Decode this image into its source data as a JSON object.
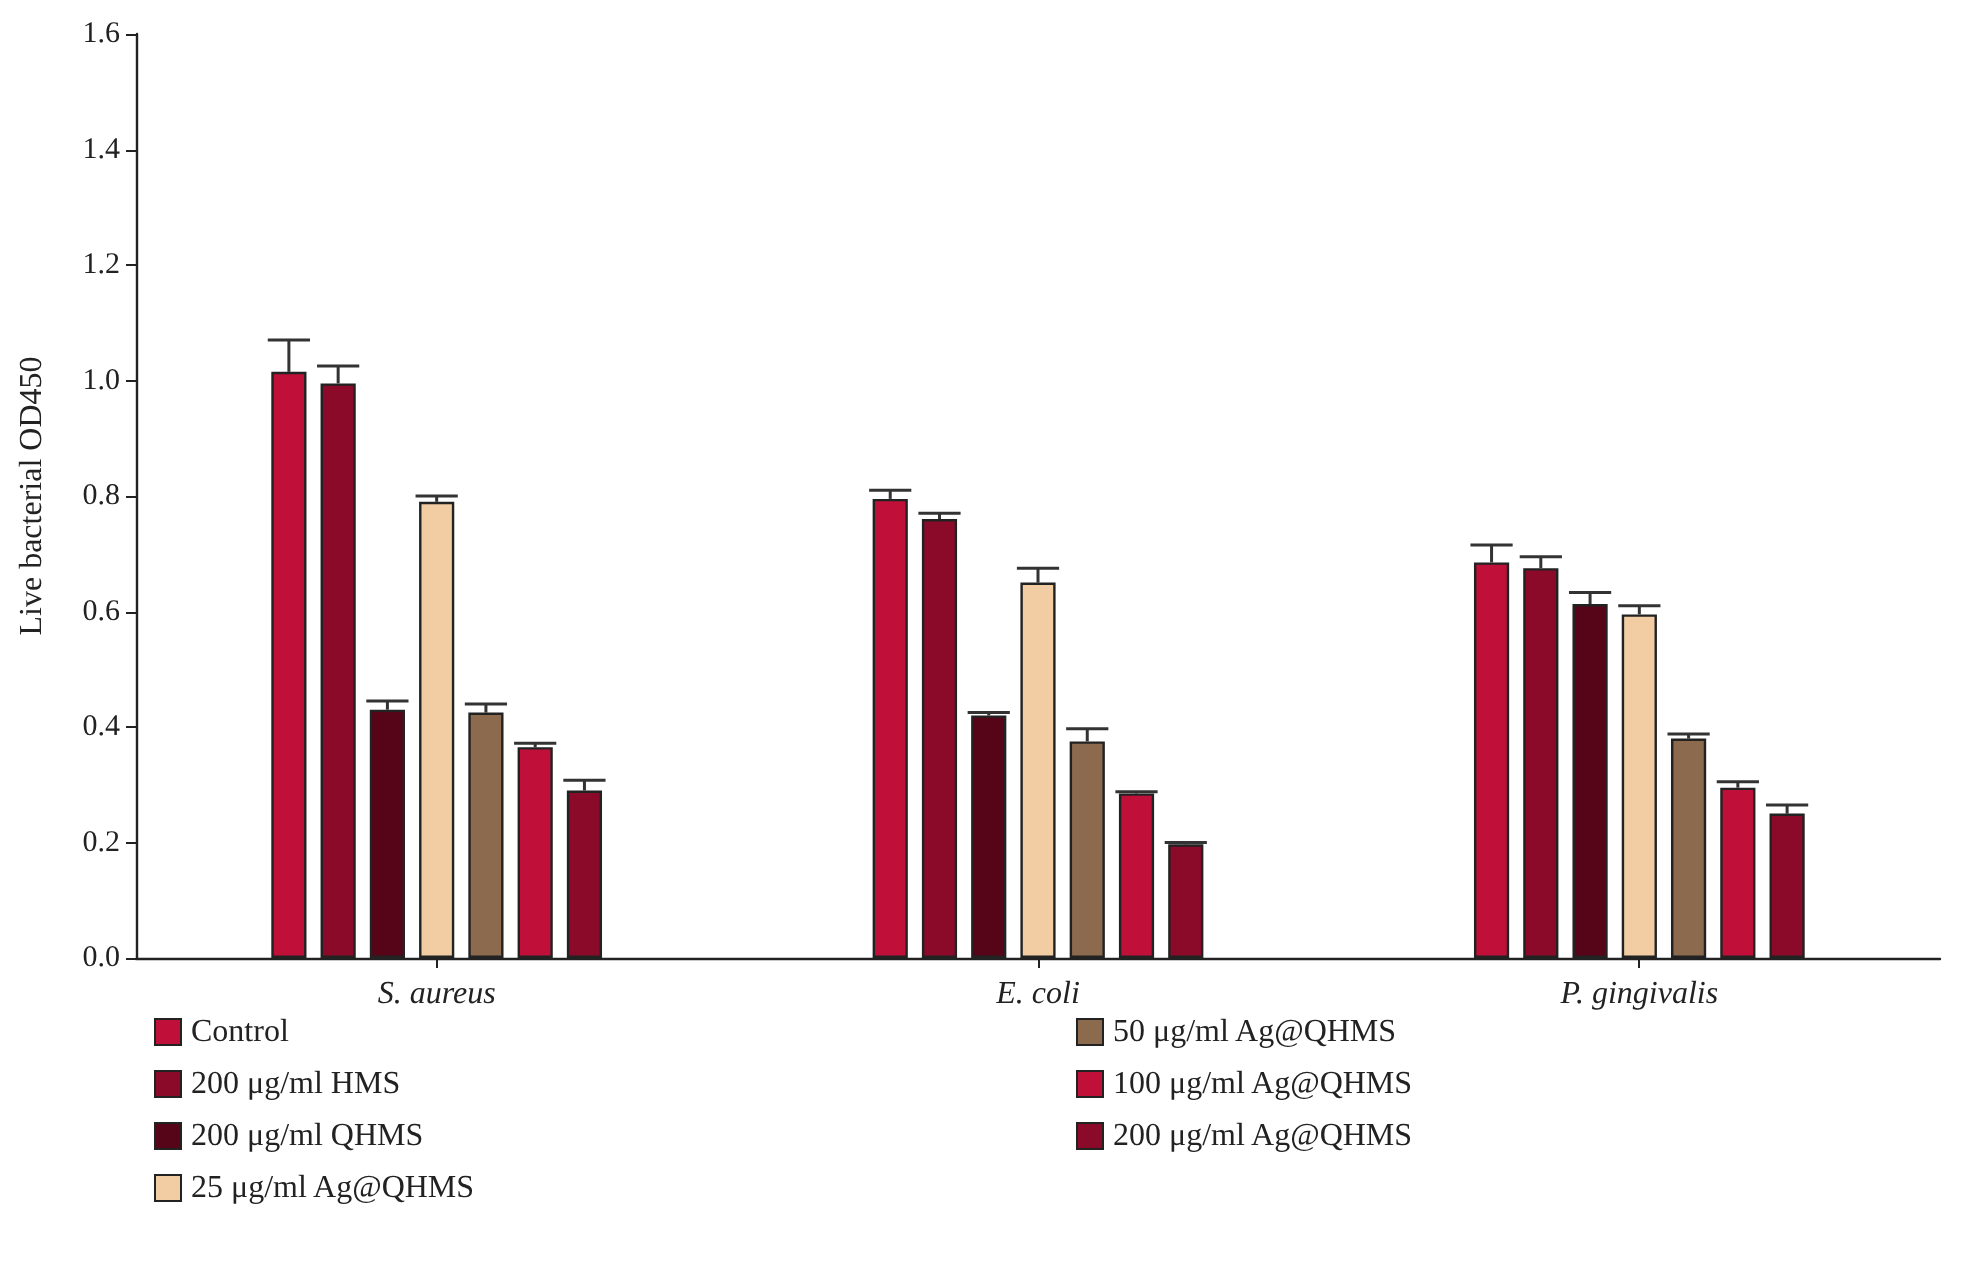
{
  "chart_data": {
    "type": "bar",
    "ylabel": "Live bacterial OD450",
    "categories": [
      "S. aureus",
      "E. coli",
      "P. gingivalis"
    ],
    "ylim": [
      0,
      1.6
    ],
    "yticks": [
      {
        "value": 0,
        "label": "0.0"
      },
      0.2,
      0.4,
      0.6,
      0.8,
      {
        "value": 1,
        "label": "1.0"
      },
      1.2,
      1.4,
      1.6
    ],
    "grid": false,
    "legend": "bottom",
    "series": [
      {
        "name": "Control",
        "color": "#c0103a",
        "values": [
          1.015,
          0.795,
          0.685
        ],
        "errors": [
          0.055,
          0.015,
          0.03
        ]
      },
      {
        "name": "200 μg/ml HMS",
        "color": "#8b0a2a",
        "values": [
          0.995,
          0.76,
          0.675
        ],
        "errors": [
          0.03,
          0.01,
          0.02
        ]
      },
      {
        "name": "200 μg/ml QHMS",
        "color": "#560418",
        "values": [
          0.43,
          0.42,
          0.613
        ],
        "errors": [
          0.015,
          0.005,
          0.02
        ]
      },
      {
        "name": "25 μg/ml Ag@QHMS",
        "color": "#f2cda3",
        "values": [
          0.79,
          0.65,
          0.595
        ],
        "errors": [
          0.01,
          0.025,
          0.015
        ]
      },
      {
        "name": "50 μg/ml Ag@QHMS",
        "color": "#8b6a4e",
        "values": [
          0.425,
          0.375,
          0.38
        ],
        "errors": [
          0.015,
          0.022,
          0.008
        ]
      },
      {
        "name": "100 μg/ml Ag@QHMS",
        "color": "#c0103a",
        "values": [
          0.365,
          0.285,
          0.295
        ],
        "errors": [
          0.007,
          0.003,
          0.01
        ]
      },
      {
        "name": "200 μg/ml Ag@QHMS",
        "color": "#8b0a2a",
        "values": [
          0.29,
          0.197,
          0.25
        ],
        "errors": [
          0.018,
          0.003,
          0.015
        ]
      }
    ]
  }
}
